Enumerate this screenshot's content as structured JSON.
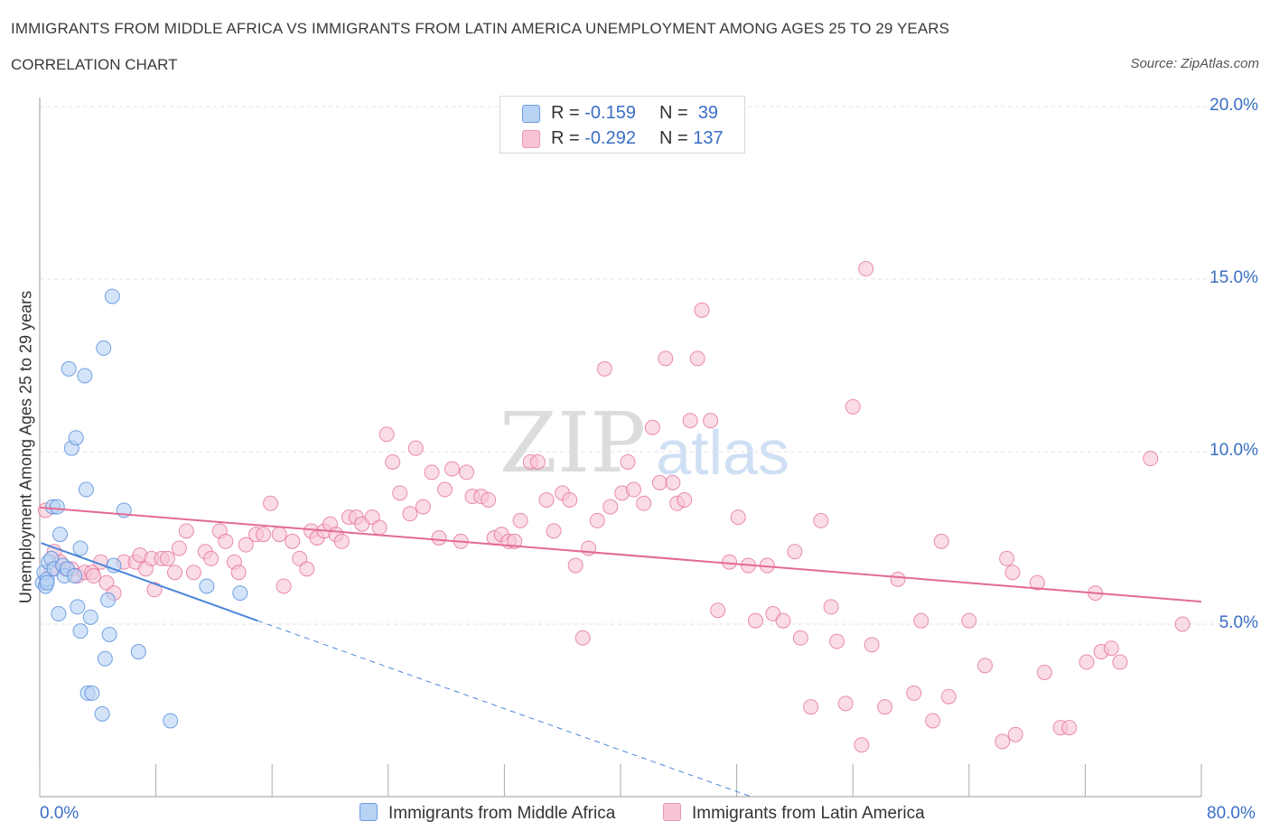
{
  "header": {
    "title": "IMMIGRANTS FROM MIDDLE AFRICA VS IMMIGRANTS FROM LATIN AMERICA UNEMPLOYMENT AMONG AGES 25 TO 29 YEARS",
    "subtitle": "CORRELATION CHART",
    "source": "Source: ZipAtlas.com"
  },
  "legend": {
    "rows": [
      {
        "r_label": "R =",
        "r_value": "-0.159",
        "n_label": "N =",
        "n_value": "39"
      },
      {
        "r_label": "R =",
        "r_value": "-0.292",
        "n_label": "N =",
        "n_value": "137"
      }
    ]
  },
  "watermark": {
    "zip": "ZIP",
    "atlas": "atlas"
  },
  "chart_data": {
    "type": "scatter",
    "title": "IMMIGRANTS FROM MIDDLE AFRICA VS IMMIGRANTS FROM LATIN AMERICA UNEMPLOYMENT AMONG AGES 25 TO 29 YEARS",
    "xlabel": "",
    "ylabel": "Unemployment Among Ages 25 to 29 years",
    "xlim": [
      0,
      80
    ],
    "ylim": [
      0,
      20
    ],
    "x_tick_labels": [
      "0.0%",
      "80.0%"
    ],
    "y_tick_labels": [
      "5.0%",
      "10.0%",
      "15.0%",
      "20.0%"
    ],
    "y_ticks": [
      5,
      10,
      15,
      20
    ],
    "grid": true,
    "series": [
      {
        "name": "Immigrants from Middle Africa",
        "color": "#4a86d8",
        "fill": "#b8d2f4",
        "R": -0.159,
        "N": 39,
        "trend": {
          "x0": 0.1,
          "y0": 7.35,
          "x1": 15.0,
          "y1": 5.1,
          "dash_to_x": 49.0,
          "dash_to_y": 0.0
        },
        "points": [
          [
            0.2,
            6.2
          ],
          [
            0.3,
            6.5
          ],
          [
            0.4,
            6.1
          ],
          [
            0.5,
            6.3
          ],
          [
            0.6,
            6.8
          ],
          [
            0.8,
            6.9
          ],
          [
            0.9,
            8.4
          ],
          [
            1.0,
            6.6
          ],
          [
            1.2,
            8.4
          ],
          [
            1.3,
            5.3
          ],
          [
            1.4,
            7.6
          ],
          [
            1.6,
            6.7
          ],
          [
            1.7,
            6.4
          ],
          [
            1.9,
            6.6
          ],
          [
            2.0,
            12.4
          ],
          [
            2.2,
            10.1
          ],
          [
            2.4,
            6.4
          ],
          [
            2.5,
            10.4
          ],
          [
            2.6,
            5.5
          ],
          [
            2.8,
            7.2
          ],
          [
            2.8,
            4.8
          ],
          [
            3.1,
            12.2
          ],
          [
            3.2,
            8.9
          ],
          [
            3.3,
            3.0
          ],
          [
            3.5,
            5.2
          ],
          [
            3.6,
            3.0
          ],
          [
            4.3,
            2.4
          ],
          [
            4.4,
            13.0
          ],
          [
            4.5,
            4.0
          ],
          [
            4.7,
            5.7
          ],
          [
            4.8,
            4.7
          ],
          [
            5.0,
            14.5
          ],
          [
            5.1,
            6.7
          ],
          [
            5.8,
            8.3
          ],
          [
            6.8,
            4.2
          ],
          [
            9.0,
            2.2
          ],
          [
            11.5,
            6.1
          ],
          [
            13.8,
            5.9
          ],
          [
            0.5,
            6.2
          ]
        ]
      },
      {
        "name": "Immigrants from Latin America",
        "color": "#e36a96",
        "fill": "#f7c4d4",
        "R": -0.292,
        "N": 137,
        "trend": {
          "x0": 0.0,
          "y0": 8.38,
          "x1": 80.0,
          "y1": 5.65
        },
        "points": [
          [
            0.4,
            8.3
          ],
          [
            0.8,
            6.6
          ],
          [
            1.0,
            7.1
          ],
          [
            1.4,
            6.8
          ],
          [
            1.8,
            6.6
          ],
          [
            2.2,
            6.6
          ],
          [
            2.6,
            6.4
          ],
          [
            3.1,
            6.5
          ],
          [
            3.6,
            6.5
          ],
          [
            3.7,
            6.4
          ],
          [
            4.2,
            6.8
          ],
          [
            4.6,
            6.2
          ],
          [
            5.1,
            5.9
          ],
          [
            5.8,
            6.8
          ],
          [
            6.6,
            6.8
          ],
          [
            6.9,
            7.0
          ],
          [
            7.3,
            6.6
          ],
          [
            7.7,
            6.9
          ],
          [
            7.9,
            6.0
          ],
          [
            8.4,
            6.9
          ],
          [
            8.8,
            6.9
          ],
          [
            9.3,
            6.5
          ],
          [
            9.6,
            7.2
          ],
          [
            10.1,
            7.7
          ],
          [
            10.6,
            6.5
          ],
          [
            11.4,
            7.1
          ],
          [
            11.8,
            6.9
          ],
          [
            12.4,
            7.7
          ],
          [
            12.8,
            7.4
          ],
          [
            13.4,
            6.8
          ],
          [
            13.7,
            6.5
          ],
          [
            14.2,
            7.3
          ],
          [
            14.9,
            7.6
          ],
          [
            15.4,
            7.6
          ],
          [
            15.9,
            8.5
          ],
          [
            16.5,
            7.6
          ],
          [
            16.8,
            6.1
          ],
          [
            17.4,
            7.4
          ],
          [
            17.9,
            6.9
          ],
          [
            18.4,
            6.6
          ],
          [
            18.7,
            7.7
          ],
          [
            19.1,
            7.5
          ],
          [
            19.6,
            7.7
          ],
          [
            20.0,
            7.9
          ],
          [
            20.4,
            7.6
          ],
          [
            20.8,
            7.4
          ],
          [
            21.3,
            8.1
          ],
          [
            21.8,
            8.1
          ],
          [
            22.2,
            7.9
          ],
          [
            22.9,
            8.1
          ],
          [
            23.4,
            7.8
          ],
          [
            23.9,
            10.5
          ],
          [
            24.3,
            9.7
          ],
          [
            24.8,
            8.8
          ],
          [
            25.5,
            8.2
          ],
          [
            25.9,
            10.1
          ],
          [
            26.4,
            8.4
          ],
          [
            27.0,
            9.4
          ],
          [
            27.5,
            7.5
          ],
          [
            27.9,
            8.9
          ],
          [
            28.4,
            9.5
          ],
          [
            29.0,
            7.4
          ],
          [
            29.4,
            9.4
          ],
          [
            29.8,
            8.7
          ],
          [
            30.4,
            8.7
          ],
          [
            30.9,
            8.6
          ],
          [
            31.3,
            7.5
          ],
          [
            31.8,
            7.6
          ],
          [
            32.3,
            7.4
          ],
          [
            32.7,
            7.4
          ],
          [
            33.1,
            8.0
          ],
          [
            33.8,
            9.7
          ],
          [
            34.3,
            9.7
          ],
          [
            34.9,
            8.6
          ],
          [
            35.4,
            7.7
          ],
          [
            36.0,
            8.8
          ],
          [
            36.5,
            8.6
          ],
          [
            36.9,
            6.7
          ],
          [
            37.4,
            4.6
          ],
          [
            37.8,
            7.2
          ],
          [
            38.4,
            8.0
          ],
          [
            38.9,
            12.4
          ],
          [
            39.3,
            8.4
          ],
          [
            40.1,
            8.8
          ],
          [
            40.5,
            9.7
          ],
          [
            40.9,
            8.9
          ],
          [
            41.6,
            8.5
          ],
          [
            42.2,
            10.7
          ],
          [
            42.7,
            9.1
          ],
          [
            43.1,
            12.7
          ],
          [
            43.6,
            9.1
          ],
          [
            43.9,
            8.5
          ],
          [
            44.4,
            8.6
          ],
          [
            44.8,
            10.9
          ],
          [
            45.3,
            12.7
          ],
          [
            45.6,
            14.1
          ],
          [
            46.2,
            10.9
          ],
          [
            46.7,
            5.4
          ],
          [
            47.5,
            6.8
          ],
          [
            48.1,
            8.1
          ],
          [
            48.8,
            6.7
          ],
          [
            49.3,
            5.1
          ],
          [
            50.1,
            6.7
          ],
          [
            50.5,
            5.3
          ],
          [
            51.2,
            5.1
          ],
          [
            52.0,
            7.1
          ],
          [
            52.4,
            4.6
          ],
          [
            53.1,
            2.6
          ],
          [
            53.8,
            8.0
          ],
          [
            54.5,
            5.5
          ],
          [
            54.9,
            4.5
          ],
          [
            55.5,
            2.7
          ],
          [
            56.0,
            11.3
          ],
          [
            56.6,
            1.5
          ],
          [
            56.9,
            15.3
          ],
          [
            57.3,
            4.4
          ],
          [
            58.2,
            2.6
          ],
          [
            59.1,
            6.3
          ],
          [
            60.2,
            3.0
          ],
          [
            60.7,
            5.1
          ],
          [
            61.5,
            2.2
          ],
          [
            62.1,
            7.4
          ],
          [
            62.6,
            2.9
          ],
          [
            64.0,
            5.1
          ],
          [
            65.1,
            3.8
          ],
          [
            66.3,
            1.6
          ],
          [
            66.6,
            6.9
          ],
          [
            67.0,
            6.5
          ],
          [
            67.2,
            1.8
          ],
          [
            68.7,
            6.2
          ],
          [
            69.2,
            3.6
          ],
          [
            70.3,
            2.0
          ],
          [
            70.9,
            2.0
          ],
          [
            72.1,
            3.9
          ],
          [
            72.7,
            5.9
          ],
          [
            73.1,
            4.2
          ],
          [
            73.8,
            4.3
          ],
          [
            74.4,
            3.9
          ],
          [
            76.5,
            9.8
          ],
          [
            78.7,
            5.0
          ]
        ]
      }
    ]
  },
  "bottom_legend": [
    "Immigrants from Middle Africa",
    "Immigrants from Latin America"
  ]
}
